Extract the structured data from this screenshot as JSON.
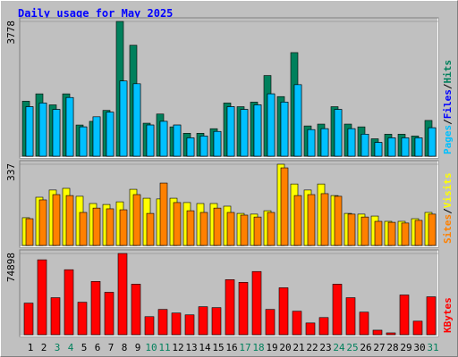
{
  "title": "Daily usage for May 2025",
  "weekend_color": "#00805c",
  "weekend": [
    2,
    3,
    9,
    10,
    16,
    17,
    23,
    24,
    30
  ],
  "chart_data": [
    {
      "type": "bar",
      "ylim": [
        0,
        3778
      ],
      "yticks": [
        3778
      ],
      "series": [
        {
          "name": "Hits",
          "color": "#00805c",
          "values": [
            1542,
            1748,
            1439,
            1748,
            874,
            977,
            1285,
            3778,
            3110,
            925,
            1182,
            822,
            643,
            643,
            771,
            1491,
            1388,
            1516,
            2262,
            1671,
            2904,
            848,
            900,
            1388,
            900,
            822,
            488,
            617,
            617,
            565,
            1002
          ]
        },
        {
          "name": "Files",
          "color": "#0000ff",
          "values": [
            1388,
            1491,
            1311,
            1645,
            822,
            1105,
            1234,
            2108,
            2031,
            874,
            977,
            874,
            514,
            565,
            694,
            1388,
            1311,
            1439,
            1748,
            1516,
            2005,
            745,
            771,
            1311,
            771,
            617,
            386,
            514,
            514,
            514,
            797
          ]
        },
        {
          "name": "Pages",
          "color": "#00c0ff",
          "values": [
            1388,
            1491,
            1311,
            1645,
            822,
            1105,
            1234,
            2108,
            2031,
            874,
            977,
            874,
            514,
            565,
            694,
            1388,
            1311,
            1439,
            1748,
            1516,
            2005,
            745,
            771,
            1311,
            771,
            617,
            386,
            514,
            514,
            514,
            797
          ]
        }
      ]
    },
    {
      "type": "bar",
      "ylim": [
        0,
        337
      ],
      "yticks": [
        337
      ],
      "series": [
        {
          "name": "Visits",
          "color": "#ffff00",
          "values": [
            115,
            200,
            230,
            237,
            204,
            174,
            170,
            181,
            233,
            196,
            193,
            196,
            178,
            174,
            174,
            163,
            133,
            130,
            144,
            337,
            255,
            230,
            255,
            207,
            133,
            130,
            122,
            100,
            100,
            111,
            137
          ]
        },
        {
          "name": "Sites",
          "color": "#ff8000",
          "values": [
            111,
            189,
            211,
            207,
            137,
            155,
            152,
            148,
            211,
            133,
            259,
            178,
            144,
            137,
            155,
            137,
            126,
            118,
            137,
            322,
            207,
            211,
            215,
            204,
            130,
            118,
            100,
            96,
            93,
            104,
            130
          ]
        }
      ]
    },
    {
      "type": "bar",
      "ylim": [
        0,
        74898
      ],
      "yticks": [
        74898
      ],
      "categories": [
        "1",
        "2",
        "3",
        "4",
        "5",
        "6",
        "7",
        "8",
        "9",
        "10",
        "11",
        "12",
        "13",
        "14",
        "15",
        "16",
        "17",
        "18",
        "19",
        "20",
        "21",
        "22",
        "23",
        "24",
        "25",
        "26",
        "27",
        "28",
        "29",
        "30",
        "31"
      ],
      "series": [
        {
          "name": "KBytes",
          "color": "#ff0000",
          "values": [
            29127,
            69073,
            34120,
            59918,
            29959,
            49100,
            39114,
            74898,
            46602,
            16644,
            23302,
            19973,
            18308,
            25798,
            24966,
            50765,
            48268,
            58254,
            23302,
            43274,
            21637,
            10819,
            15812,
            46602,
            34120,
            20805,
            4161,
            1664,
            36617,
            12483,
            34952
          ]
        }
      ]
    }
  ]
}
